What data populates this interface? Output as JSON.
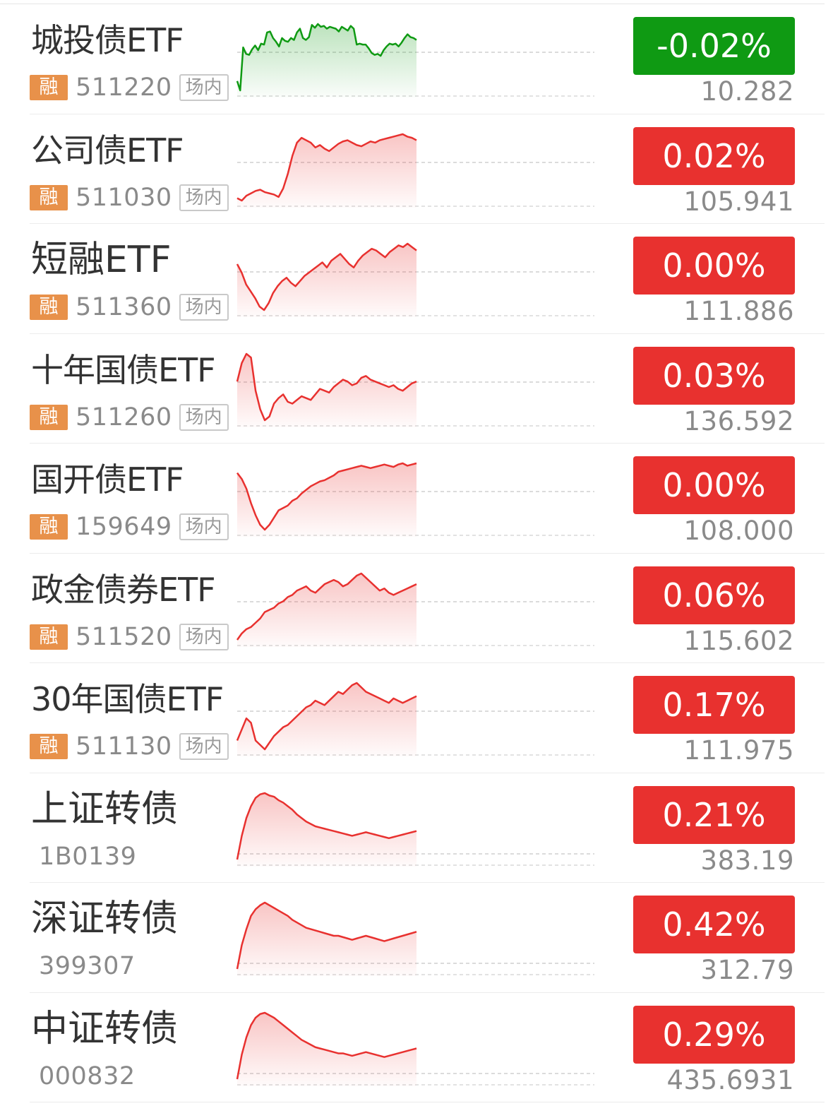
{
  "colors": {
    "up": "#e8312f",
    "down": "#0f9a13",
    "badge": "#e8914a"
  },
  "items": [
    {
      "name": "城投债ETF",
      "margin": "融",
      "code": "511220",
      "market": "场内",
      "change": "-0.02%",
      "price": "10.282",
      "trend": "down",
      "series": [
        14,
        4,
        50,
        43,
        42,
        48,
        52,
        47,
        54,
        53,
        66,
        67,
        60,
        56,
        51,
        60,
        57,
        56,
        60,
        58,
        66,
        70,
        60,
        58,
        61,
        74,
        71,
        75,
        72,
        73,
        70,
        72,
        71,
        70,
        67,
        72,
        70,
        68,
        73,
        70,
        53,
        54,
        53,
        53,
        49,
        44,
        42,
        43,
        41,
        47,
        51,
        54,
        53,
        54,
        51,
        55,
        60,
        64,
        61,
        60,
        58
      ]
    },
    {
      "name": "公司债ETF",
      "margin": "融",
      "code": "511030",
      "market": "场内",
      "change": "0.02%",
      "price": "105.941",
      "trend": "up",
      "series": [
        20,
        18,
        22,
        24,
        26,
        27,
        25,
        24,
        23,
        21,
        28,
        40,
        55,
        66,
        70,
        68,
        66,
        62,
        64,
        61,
        59,
        62,
        65,
        67,
        68,
        66,
        64,
        63,
        65,
        67,
        66,
        68,
        69,
        70,
        71,
        72,
        73,
        71,
        70,
        68
      ]
    },
    {
      "name": "短融ETF",
      "margin": "融",
      "code": "511360",
      "market": "场内",
      "change": "0.00%",
      "price": "111.886",
      "trend": "up",
      "series": [
        60,
        55,
        48,
        44,
        40,
        35,
        33,
        37,
        43,
        47,
        50,
        52,
        49,
        47,
        50,
        53,
        55,
        57,
        59,
        61,
        58,
        62,
        64,
        66,
        63,
        60,
        58,
        62,
        65,
        67,
        69,
        68,
        66,
        64,
        67,
        69,
        71,
        70,
        72,
        70,
        68
      ]
    },
    {
      "name": "十年国债ETF",
      "margin": "融",
      "code": "511260",
      "market": "场内",
      "change": "0.03%",
      "price": "136.592",
      "trend": "up",
      "series": [
        45,
        55,
        60,
        58,
        40,
        30,
        24,
        26,
        33,
        36,
        38,
        34,
        33,
        35,
        37,
        36,
        35,
        38,
        41,
        40,
        39,
        42,
        44,
        46,
        45,
        43,
        44,
        47,
        48,
        46,
        45,
        44,
        43,
        42,
        43,
        41,
        40,
        42,
        44,
        45
      ]
    },
    {
      "name": "国开债ETF",
      "margin": "融",
      "code": "159649",
      "market": "场内",
      "change": "0.00%",
      "price": "108.000",
      "trend": "up",
      "series": [
        65,
        60,
        52,
        40,
        30,
        22,
        18,
        22,
        28,
        34,
        36,
        38,
        42,
        44,
        48,
        51,
        54,
        56,
        58,
        59,
        61,
        63,
        66,
        67,
        68,
        69,
        70,
        71,
        70,
        69,
        70,
        71,
        72,
        71,
        70,
        72,
        73,
        71,
        72,
        73
      ]
    },
    {
      "name": "政金债券ETF",
      "margin": "融",
      "code": "511520",
      "market": "场内",
      "change": "0.06%",
      "price": "115.602",
      "trend": "up",
      "series": [
        30,
        33,
        35,
        36,
        38,
        40,
        43,
        44,
        45,
        47,
        48,
        50,
        51,
        53,
        54,
        55,
        53,
        52,
        54,
        56,
        57,
        58,
        57,
        55,
        56,
        58,
        60,
        61,
        59,
        57,
        55,
        53,
        54,
        52,
        51,
        52,
        53,
        54,
        55,
        56
      ]
    },
    {
      "name": "30年国债ETF",
      "margin": "融",
      "code": "511130",
      "market": "场内",
      "change": "0.17%",
      "price": "111.975",
      "trend": "up",
      "series": [
        40,
        45,
        50,
        48,
        40,
        38,
        36,
        39,
        42,
        44,
        46,
        47,
        49,
        51,
        53,
        55,
        56,
        58,
        57,
        56,
        58,
        60,
        62,
        61,
        63,
        65,
        66,
        64,
        62,
        61,
        60,
        59,
        58,
        57,
        59,
        58,
        57,
        58,
        59,
        60
      ]
    },
    {
      "name": "上证转债",
      "margin": "",
      "code": "1B0139",
      "market": "",
      "change": "0.21%",
      "price": "383.19",
      "trend": "up",
      "series": [
        10,
        30,
        45,
        55,
        62,
        65,
        66,
        64,
        63,
        60,
        58,
        55,
        52,
        48,
        45,
        42,
        40,
        38,
        37,
        36,
        35,
        34,
        33,
        32,
        31,
        30,
        31,
        32,
        33,
        32,
        31,
        30,
        29,
        28,
        29,
        30,
        31,
        32,
        33,
        34
      ]
    },
    {
      "name": "深证转债",
      "margin": "",
      "code": "399307",
      "market": "",
      "change": "0.42%",
      "price": "312.79",
      "trend": "up",
      "series": [
        10,
        28,
        40,
        50,
        55,
        58,
        60,
        58,
        56,
        54,
        52,
        50,
        47,
        45,
        43,
        41,
        40,
        39,
        38,
        37,
        36,
        35,
        35,
        34,
        33,
        32,
        33,
        34,
        35,
        34,
        33,
        32,
        31,
        32,
        33,
        34,
        35,
        36,
        37,
        38
      ]
    },
    {
      "name": "中证转债",
      "margin": "",
      "code": "000832",
      "market": "",
      "change": "0.29%",
      "price": "435.6931",
      "trend": "up",
      "series": [
        10,
        30,
        44,
        54,
        60,
        63,
        64,
        62,
        60,
        57,
        54,
        51,
        48,
        45,
        42,
        40,
        38,
        36,
        35,
        34,
        33,
        32,
        31,
        31,
        30,
        29,
        30,
        31,
        32,
        31,
        30,
        29,
        28,
        29,
        30,
        31,
        32,
        33,
        34,
        35
      ]
    }
  ]
}
